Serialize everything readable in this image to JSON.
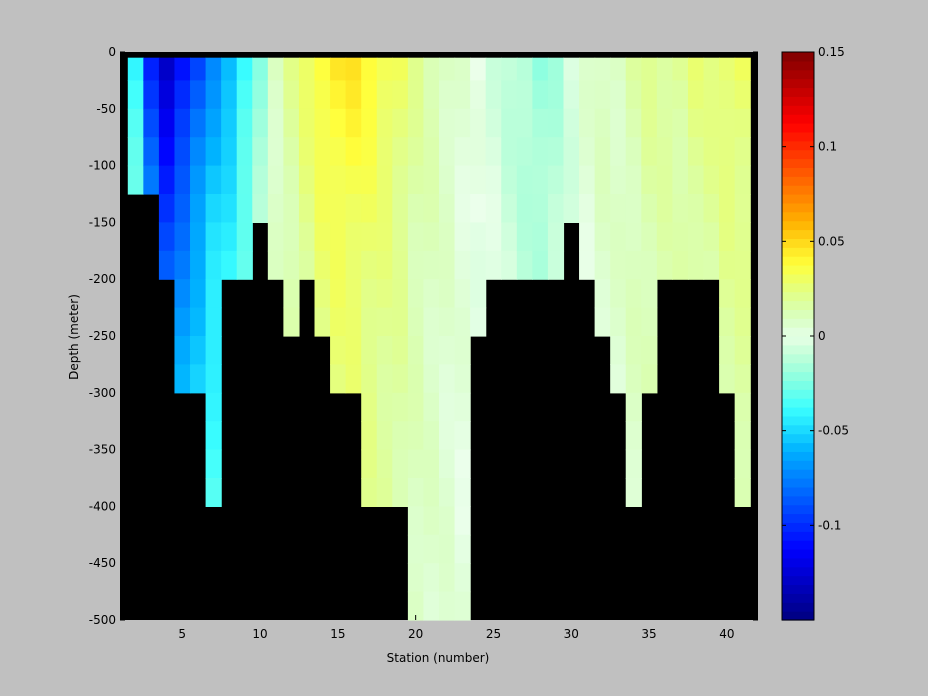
{
  "chart_data": {
    "type": "heatmap",
    "title": "",
    "xlabel": "Station (number)",
    "ylabel": "Depth (meter)",
    "xlim": [
      1,
      42
    ],
    "ylim": [
      -500,
      0
    ],
    "x_ticks": [
      5,
      10,
      15,
      20,
      25,
      30,
      35,
      40
    ],
    "x_tick_labels": [
      "5",
      "10",
      "15",
      "20",
      "25",
      "30",
      "35",
      "40"
    ],
    "y_ticks": [
      0,
      -50,
      -100,
      -150,
      -200,
      -250,
      -300,
      -350,
      -400,
      -450,
      -500
    ],
    "y_tick_labels": [
      "0",
      "-50",
      "-100",
      "-150",
      "-200",
      "-250",
      "-300",
      "-350",
      "-400",
      "-450",
      "-500"
    ],
    "colorbar": {
      "colormap": "jet",
      "range": [
        -0.15,
        0.15
      ],
      "ticks": [
        0.15,
        0.1,
        0.05,
        0,
        -0.05,
        -0.1
      ],
      "tick_labels": [
        "0.15",
        "0.1",
        "0.05",
        "0",
        "-0.05",
        "-0.1"
      ]
    },
    "station_bottom_depth": [
      -125,
      -125,
      -200,
      -300,
      -300,
      -400,
      -200,
      -200,
      -150,
      -200,
      -250,
      -200,
      -250,
      -300,
      -300,
      -400,
      -400,
      -400,
      -500,
      -500,
      -500,
      -500,
      -250,
      -200,
      -200,
      -200,
      -200,
      -200,
      -150,
      -200,
      -250,
      -300,
      -400,
      -300,
      -200,
      -200,
      -200,
      -200,
      -300,
      -400
    ],
    "surface_values": [
      -0.04,
      -0.1,
      -0.13,
      -0.11,
      -0.09,
      -0.07,
      -0.06,
      -0.04,
      -0.02,
      0.01,
      0.02,
      0.03,
      0.04,
      0.045,
      0.045,
      0.04,
      0.035,
      0.03,
      0.02,
      0.015,
      0.01,
      0.005,
      0.0,
      -0.005,
      -0.01,
      -0.015,
      -0.02,
      -0.015,
      -0.005,
      0.005,
      0.01,
      0.01,
      0.015,
      0.02,
      0.02,
      0.02,
      0.025,
      0.025,
      0.03,
      0.03
    ]
  },
  "colors": {
    "background": "#c0c0c0",
    "land": "#000000"
  }
}
